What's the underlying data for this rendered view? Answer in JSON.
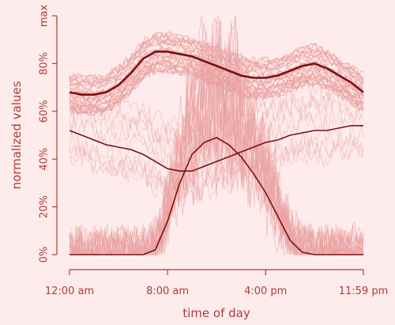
{
  "chart_data": {
    "type": "line",
    "title": "",
    "xlabel": "time of day",
    "ylabel": "normalized values",
    "x_ticks": [
      {
        "hour": 0,
        "label": "12:00 am"
      },
      {
        "hour": 8,
        "label": "8:00 am"
      },
      {
        "hour": 16,
        "label": "4:00 pm"
      },
      {
        "hour": 23.98,
        "label": "11:59 pm"
      }
    ],
    "y_ticks": [
      {
        "value": 0,
        "label": "0%"
      },
      {
        "value": 20,
        "label": "20%"
      },
      {
        "value": 40,
        "label": "40%"
      },
      {
        "value": 60,
        "label": "60%"
      },
      {
        "value": 80,
        "label": "80%"
      },
      {
        "value": 100,
        "label": "max"
      }
    ],
    "xlim": [
      0,
      23.98
    ],
    "ylim": [
      0,
      100
    ],
    "grid": false,
    "colors": {
      "background": "#fdeceb",
      "axis": "#b03a3a",
      "highlight": "#7a1010",
      "faint": "#e9a0a0"
    },
    "highlight_series": [
      {
        "x": [
          0,
          1,
          2,
          3,
          4,
          5,
          6,
          7,
          8,
          9,
          10,
          11,
          12,
          13,
          14,
          15,
          16,
          17,
          18,
          19,
          20,
          21,
          22,
          23,
          23.98
        ],
        "values": [
          68,
          67,
          67,
          68,
          71,
          76,
          82,
          85,
          85,
          84,
          83,
          81,
          79,
          77,
          75,
          74,
          74,
          75,
          77,
          79,
          80,
          78,
          75,
          72,
          68
        ]
      },
      {
        "x": [
          0,
          1,
          2,
          3,
          4,
          5,
          6,
          7,
          8,
          9,
          10,
          11,
          12,
          13,
          14,
          15,
          16,
          17,
          18,
          19,
          20,
          21,
          22,
          23,
          23.98
        ],
        "values": [
          52,
          50,
          48,
          46,
          45,
          44,
          42,
          39,
          36,
          35,
          35,
          37,
          39,
          41,
          43,
          45,
          47,
          48,
          50,
          51,
          52,
          52,
          53,
          54,
          54
        ]
      },
      {
        "x": [
          0,
          1,
          2,
          3,
          4,
          5,
          6,
          7,
          8,
          9,
          10,
          11,
          12,
          13,
          14,
          15,
          16,
          17,
          18,
          19,
          20,
          21,
          22,
          23,
          23.98
        ],
        "values": [
          0,
          0,
          0,
          0,
          0,
          0,
          0,
          2,
          14,
          30,
          42,
          47,
          49,
          46,
          41,
          34,
          26,
          16,
          6,
          1,
          0,
          0,
          0,
          0,
          0
        ]
      }
    ]
  }
}
